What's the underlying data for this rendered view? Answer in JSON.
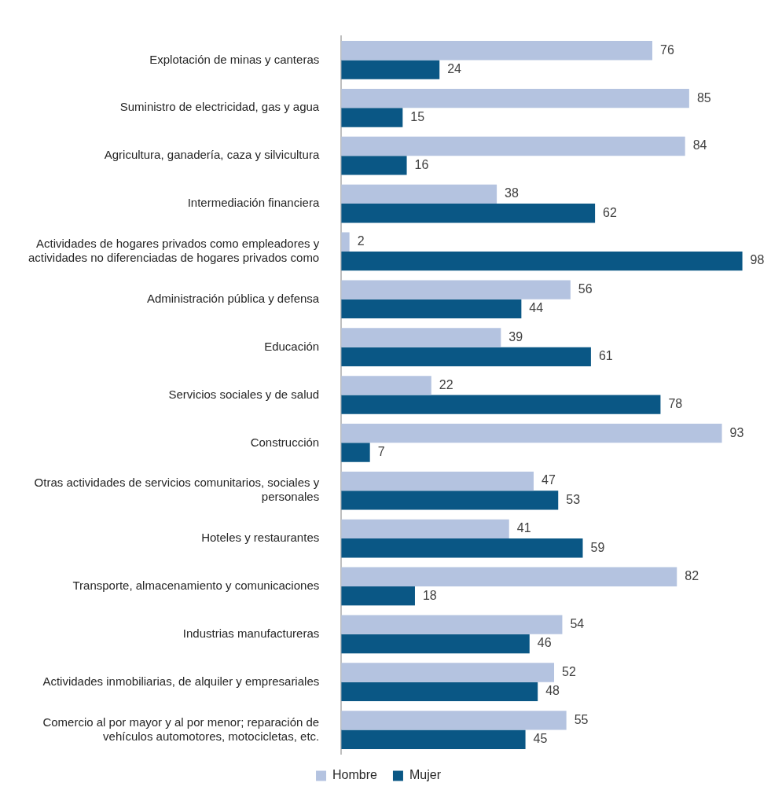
{
  "chart_data": {
    "type": "bar",
    "orientation": "horizontal",
    "data_labels": true,
    "legend": "bottom",
    "categories": [
      "Explotación de minas y canteras",
      "Suministro de electricidad, gas y agua",
      "Agricultura, ganadería, caza y silvicultura",
      "Intermediación financiera",
      "Actividades de hogares privados como empleadores y actividades no diferenciadas de hogares privados como",
      "Administración pública y defensa",
      "Educación",
      "Servicios sociales y de salud",
      "Construcción",
      "Otras actividades de servicios comunitarios, sociales y personales",
      "Hoteles y restaurantes",
      "Transporte, almacenamiento y comunicaciones",
      "Industrias manufactureras",
      "Actividades inmobiliarias, de alquiler y empresariales",
      "Comercio al por mayor y al por menor; reparación de vehículos automotores, motocicletas, etc."
    ],
    "series": [
      {
        "name": "Hombre",
        "color": "#b4c3e0",
        "values": [
          76,
          85,
          84,
          38,
          2,
          56,
          39,
          22,
          93,
          47,
          41,
          82,
          54,
          52,
          55
        ]
      },
      {
        "name": "Mujer",
        "color": "#0a5785",
        "values": [
          24,
          15,
          16,
          62,
          98,
          44,
          61,
          78,
          7,
          53,
          59,
          18,
          46,
          48,
          45
        ]
      }
    ]
  }
}
